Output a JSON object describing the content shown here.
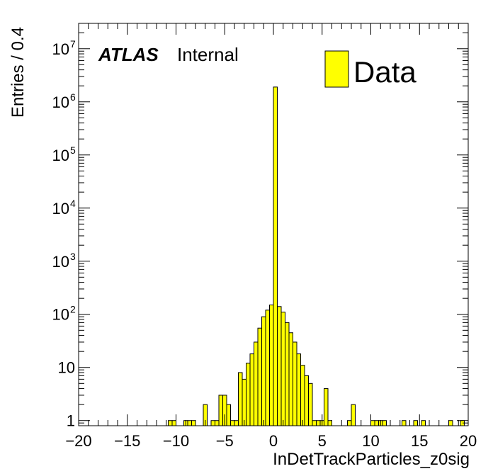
{
  "chart_data": {
    "type": "bar",
    "histogram": true,
    "labels": {
      "experiment": "ATLAS",
      "status": "Internal"
    },
    "xlabel": "InDetTrackParticles_z0sig",
    "ylabel": "Entries / 0.4",
    "xlim": [
      -20,
      20
    ],
    "ylim": [
      0.8,
      30000000.0
    ],
    "yscale": "log",
    "bin_width": 0.4,
    "x_ticks": [
      {
        "value": -20,
        "label": "−20"
      },
      {
        "value": -15,
        "label": "−15"
      },
      {
        "value": -10,
        "label": "−10"
      },
      {
        "value": -5,
        "label": "−5"
      },
      {
        "value": 0,
        "label": "0"
      },
      {
        "value": 5,
        "label": "5"
      },
      {
        "value": 10,
        "label": "10"
      },
      {
        "value": 15,
        "label": "15"
      },
      {
        "value": 20,
        "label": "20"
      }
    ],
    "y_ticks": [
      {
        "value": 1,
        "base": "1",
        "exp": ""
      },
      {
        "value": 10,
        "base": "10",
        "exp": ""
      },
      {
        "value": 100,
        "base": "10",
        "exp": "2"
      },
      {
        "value": 1000,
        "base": "10",
        "exp": "3"
      },
      {
        "value": 10000,
        "base": "10",
        "exp": "4"
      },
      {
        "value": 100000,
        "base": "10",
        "exp": "5"
      },
      {
        "value": 1000000,
        "base": "10",
        "exp": "6"
      },
      {
        "value": 10000000,
        "base": "10",
        "exp": "7"
      }
    ],
    "legend": {
      "position": "top-right",
      "entries": [
        {
          "name": "Data",
          "color": "#ffff00"
        }
      ]
    },
    "fill_color": "#ffff00",
    "line_color": "#000000",
    "series": [
      {
        "name": "Data",
        "bins": [
          {
            "x_low": -10.8,
            "value": 1
          },
          {
            "x_low": -10.4,
            "value": 1
          },
          {
            "x_low": -9.2,
            "value": 1
          },
          {
            "x_low": -8.8,
            "value": 1
          },
          {
            "x_low": -8.4,
            "value": 1
          },
          {
            "x_low": -7.2,
            "value": 2
          },
          {
            "x_low": -6.4,
            "value": 1
          },
          {
            "x_low": -6.0,
            "value": 1
          },
          {
            "x_low": -5.6,
            "value": 3
          },
          {
            "x_low": -5.2,
            "value": 3
          },
          {
            "x_low": -4.8,
            "value": 2
          },
          {
            "x_low": -4.4,
            "value": 1
          },
          {
            "x_low": -4.0,
            "value": 1
          },
          {
            "x_low": -3.6,
            "value": 8
          },
          {
            "x_low": -3.2,
            "value": 6
          },
          {
            "x_low": -2.8,
            "value": 12
          },
          {
            "x_low": -2.4,
            "value": 18
          },
          {
            "x_low": -2.0,
            "value": 30
          },
          {
            "x_low": -1.6,
            "value": 55
          },
          {
            "x_low": -1.2,
            "value": 90
          },
          {
            "x_low": -0.8,
            "value": 120
          },
          {
            "x_low": -0.4,
            "value": 150
          },
          {
            "x_low": 0.0,
            "value": 1900000
          },
          {
            "x_low": 0.4,
            "value": 140
          },
          {
            "x_low": 0.8,
            "value": 110
          },
          {
            "x_low": 1.2,
            "value": 70
          },
          {
            "x_low": 1.6,
            "value": 45
          },
          {
            "x_low": 2.0,
            "value": 30
          },
          {
            "x_low": 2.4,
            "value": 18
          },
          {
            "x_low": 2.8,
            "value": 11
          },
          {
            "x_low": 3.2,
            "value": 7
          },
          {
            "x_low": 3.6,
            "value": 5
          },
          {
            "x_low": 4.0,
            "value": 1
          },
          {
            "x_low": 4.4,
            "value": 1
          },
          {
            "x_low": 4.8,
            "value": 1
          },
          {
            "x_low": 5.2,
            "value": 4
          },
          {
            "x_low": 5.6,
            "value": 1
          },
          {
            "x_low": 7.6,
            "value": 1
          },
          {
            "x_low": 8.0,
            "value": 2
          },
          {
            "x_low": 10.0,
            "value": 1
          },
          {
            "x_low": 10.4,
            "value": 1
          },
          {
            "x_low": 10.8,
            "value": 1
          },
          {
            "x_low": 11.2,
            "value": 1
          },
          {
            "x_low": 13.2,
            "value": 1
          },
          {
            "x_low": 14.4,
            "value": 1
          },
          {
            "x_low": 15.2,
            "value": 1
          },
          {
            "x_low": 18.0,
            "value": 1
          },
          {
            "x_low": 19.2,
            "value": 1
          }
        ]
      }
    ]
  }
}
